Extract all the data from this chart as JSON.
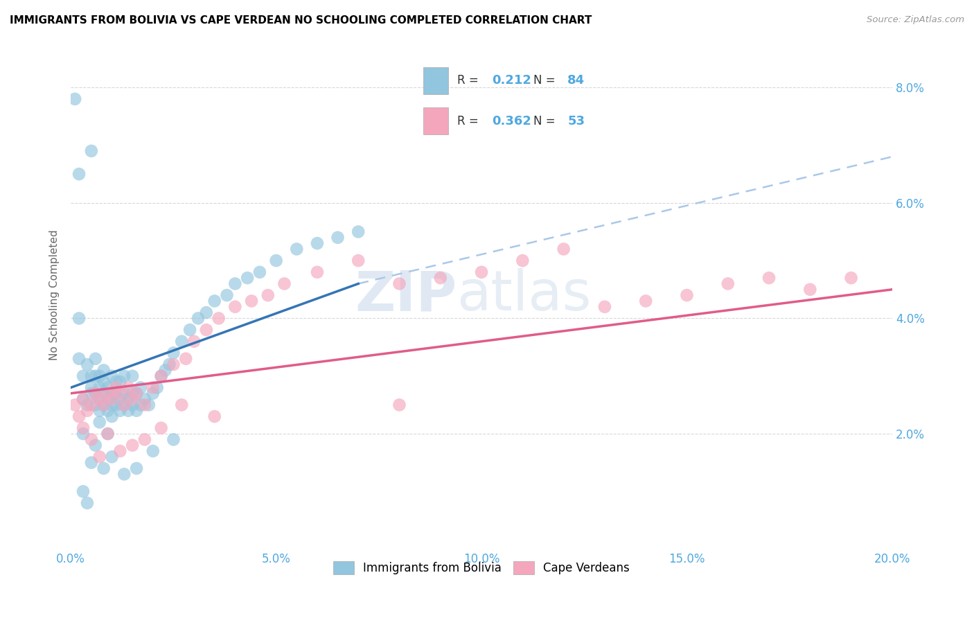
{
  "title": "IMMIGRANTS FROM BOLIVIA VS CAPE VERDEAN NO SCHOOLING COMPLETED CORRELATION CHART",
  "source": "Source: ZipAtlas.com",
  "ylabel": "No Schooling Completed",
  "watermark_zip": "ZIP",
  "watermark_atlas": "atlas",
  "legend1_label": "Immigrants from Bolivia",
  "legend2_label": "Cape Verdeans",
  "r1": "0.212",
  "n1": "84",
  "r2": "0.362",
  "n2": "53",
  "xlim": [
    0.0,
    0.2
  ],
  "ylim": [
    0.0,
    0.088
  ],
  "xtick_vals": [
    0.0,
    0.05,
    0.1,
    0.15,
    0.2
  ],
  "xtick_labels": [
    "0.0%",
    "5.0%",
    "10.0%",
    "15.0%",
    "20.0%"
  ],
  "ytick_vals": [
    0.02,
    0.04,
    0.06,
    0.08
  ],
  "ytick_labels": [
    "2.0%",
    "4.0%",
    "6.0%",
    "8.0%"
  ],
  "color_blue": "#92c5de",
  "color_pink": "#f4a6bd",
  "color_blue_line": "#3575b5",
  "color_pink_line": "#e05c8a",
  "color_dash": "#aac8e8",
  "grid_color": "#d8d8d8",
  "tick_color": "#4fa8e0",
  "blue_line_x0": 0.0,
  "blue_line_y0": 0.028,
  "blue_line_x1": 0.07,
  "blue_line_y1": 0.046,
  "dash_line_x0": 0.07,
  "dash_line_y0": 0.046,
  "dash_line_x1": 0.2,
  "dash_line_y1": 0.068,
  "pink_line_x0": 0.0,
  "pink_line_y0": 0.027,
  "pink_line_x1": 0.2,
  "pink_line_y1": 0.045,
  "bolivia_x": [
    0.001,
    0.002,
    0.002,
    0.003,
    0.003,
    0.004,
    0.004,
    0.005,
    0.005,
    0.005,
    0.005,
    0.006,
    0.006,
    0.006,
    0.006,
    0.007,
    0.007,
    0.007,
    0.007,
    0.008,
    0.008,
    0.008,
    0.008,
    0.009,
    0.009,
    0.009,
    0.01,
    0.01,
    0.01,
    0.01,
    0.011,
    0.011,
    0.011,
    0.012,
    0.012,
    0.012,
    0.013,
    0.013,
    0.013,
    0.014,
    0.014,
    0.015,
    0.015,
    0.015,
    0.016,
    0.016,
    0.017,
    0.017,
    0.018,
    0.019,
    0.02,
    0.021,
    0.022,
    0.023,
    0.024,
    0.025,
    0.027,
    0.029,
    0.031,
    0.033,
    0.035,
    0.038,
    0.04,
    0.043,
    0.046,
    0.05,
    0.055,
    0.06,
    0.065,
    0.07,
    0.002,
    0.003,
    0.005,
    0.006,
    0.008,
    0.01,
    0.013,
    0.016,
    0.02,
    0.025,
    0.003,
    0.004,
    0.007,
    0.009
  ],
  "bolivia_y": [
    0.078,
    0.04,
    0.033,
    0.03,
    0.026,
    0.032,
    0.025,
    0.028,
    0.03,
    0.027,
    0.069,
    0.025,
    0.027,
    0.03,
    0.033,
    0.024,
    0.026,
    0.028,
    0.03,
    0.025,
    0.027,
    0.029,
    0.031,
    0.024,
    0.026,
    0.028,
    0.023,
    0.025,
    0.027,
    0.03,
    0.025,
    0.027,
    0.029,
    0.024,
    0.026,
    0.029,
    0.025,
    0.027,
    0.03,
    0.024,
    0.026,
    0.025,
    0.027,
    0.03,
    0.024,
    0.027,
    0.025,
    0.028,
    0.026,
    0.025,
    0.027,
    0.028,
    0.03,
    0.031,
    0.032,
    0.034,
    0.036,
    0.038,
    0.04,
    0.041,
    0.043,
    0.044,
    0.046,
    0.047,
    0.048,
    0.05,
    0.052,
    0.053,
    0.054,
    0.055,
    0.065,
    0.02,
    0.015,
    0.018,
    0.014,
    0.016,
    0.013,
    0.014,
    0.017,
    0.019,
    0.01,
    0.008,
    0.022,
    0.02
  ],
  "cape_x": [
    0.001,
    0.002,
    0.003,
    0.004,
    0.005,
    0.006,
    0.007,
    0.008,
    0.009,
    0.01,
    0.011,
    0.012,
    0.013,
    0.014,
    0.015,
    0.016,
    0.018,
    0.02,
    0.022,
    0.025,
    0.028,
    0.03,
    0.033,
    0.036,
    0.04,
    0.044,
    0.048,
    0.052,
    0.06,
    0.07,
    0.08,
    0.09,
    0.1,
    0.11,
    0.12,
    0.13,
    0.14,
    0.15,
    0.16,
    0.17,
    0.18,
    0.19,
    0.003,
    0.005,
    0.007,
    0.009,
    0.012,
    0.015,
    0.018,
    0.022,
    0.027,
    0.035,
    0.08
  ],
  "cape_y": [
    0.025,
    0.023,
    0.026,
    0.024,
    0.025,
    0.027,
    0.026,
    0.025,
    0.027,
    0.026,
    0.028,
    0.027,
    0.025,
    0.028,
    0.026,
    0.027,
    0.025,
    0.028,
    0.03,
    0.032,
    0.033,
    0.036,
    0.038,
    0.04,
    0.042,
    0.043,
    0.044,
    0.046,
    0.048,
    0.05,
    0.046,
    0.047,
    0.048,
    0.05,
    0.052,
    0.042,
    0.043,
    0.044,
    0.046,
    0.047,
    0.045,
    0.047,
    0.021,
    0.019,
    0.016,
    0.02,
    0.017,
    0.018,
    0.019,
    0.021,
    0.025,
    0.023,
    0.025
  ]
}
